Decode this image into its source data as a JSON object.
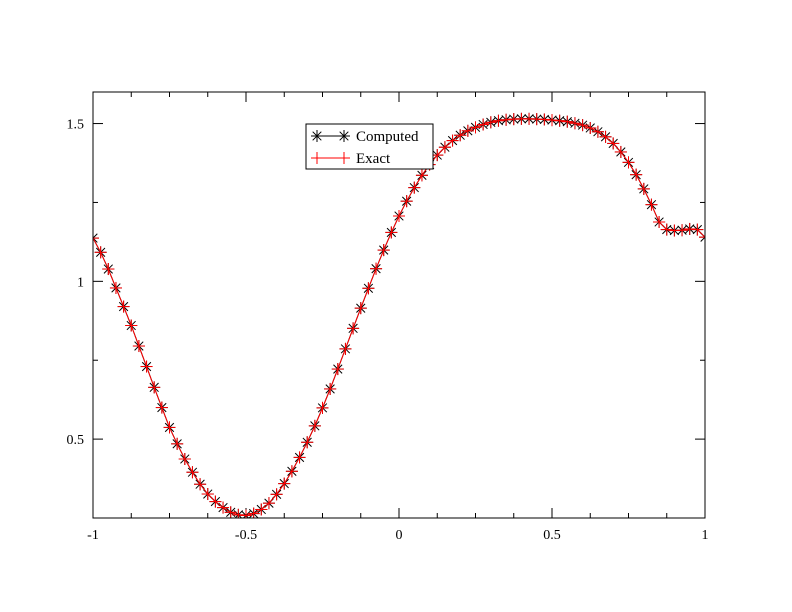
{
  "chart_data": {
    "type": "line",
    "title": "",
    "xlabel": "",
    "ylabel": "",
    "xlim": [
      -1,
      1
    ],
    "ylim": [
      0.25,
      1.6
    ],
    "xticks": [
      -1,
      -0.5,
      0,
      0.5,
      1
    ],
    "xtick_labels": [
      "-1",
      "-0.5",
      "0",
      "0.5",
      "1"
    ],
    "yticks": [
      0.5,
      1,
      1.5
    ],
    "ytick_labels": [
      "0.5",
      "1",
      "1.5"
    ],
    "grid": false,
    "legend_position": "top-center",
    "x": [
      -1.0,
      -0.975,
      -0.95,
      -0.925,
      -0.9,
      -0.875,
      -0.85,
      -0.825,
      -0.8,
      -0.775,
      -0.75,
      -0.725,
      -0.7,
      -0.675,
      -0.65,
      -0.625,
      -0.6,
      -0.575,
      -0.55,
      -0.525,
      -0.5,
      -0.475,
      -0.45,
      -0.425,
      -0.4,
      -0.375,
      -0.35,
      -0.325,
      -0.3,
      -0.275,
      -0.25,
      -0.225,
      -0.2,
      -0.175,
      -0.15,
      -0.125,
      -0.1,
      -0.075,
      -0.05,
      -0.025,
      0.0,
      0.025,
      0.05,
      0.075,
      0.1,
      0.125,
      0.15,
      0.175,
      0.2,
      0.225,
      0.25,
      0.275,
      0.3,
      0.325,
      0.35,
      0.375,
      0.4,
      0.425,
      0.45,
      0.475,
      0.5,
      0.525,
      0.55,
      0.575,
      0.6,
      0.625,
      0.65,
      0.675,
      0.7,
      0.725,
      0.75,
      0.775,
      0.8,
      0.825,
      0.85,
      0.875,
      0.9,
      0.925,
      0.95,
      0.975,
      1.0
    ],
    "series": [
      {
        "name": "Computed",
        "color": "#000000",
        "marker": "asterisk",
        "values": [
          1.137,
          1.092,
          1.039,
          0.979,
          0.92,
          0.86,
          0.795,
          0.73,
          0.664,
          0.6,
          0.537,
          0.485,
          0.437,
          0.395,
          0.357,
          0.326,
          0.302,
          0.283,
          0.268,
          0.26,
          0.258,
          0.264,
          0.277,
          0.297,
          0.325,
          0.359,
          0.398,
          0.442,
          0.49,
          0.542,
          0.599,
          0.659,
          0.722,
          0.786,
          0.851,
          0.915,
          0.978,
          1.04,
          1.099,
          1.155,
          1.207,
          1.254,
          1.297,
          1.336,
          1.37,
          1.4,
          1.425,
          1.446,
          1.463,
          1.477,
          1.488,
          1.497,
          1.504,
          1.509,
          1.512,
          1.514,
          1.515,
          1.515,
          1.514,
          1.513,
          1.511,
          1.509,
          1.506,
          1.501,
          1.495,
          1.486,
          1.474,
          1.458,
          1.437,
          1.41,
          1.377,
          1.338,
          1.293,
          1.243,
          1.188,
          1.164,
          1.161,
          1.162,
          1.166,
          1.164,
          1.14
        ]
      },
      {
        "name": "Exact",
        "color": "#ff0000",
        "marker": "plus",
        "values": [
          1.137,
          1.092,
          1.039,
          0.979,
          0.92,
          0.86,
          0.795,
          0.73,
          0.664,
          0.6,
          0.537,
          0.485,
          0.437,
          0.395,
          0.357,
          0.326,
          0.302,
          0.283,
          0.268,
          0.26,
          0.258,
          0.264,
          0.277,
          0.297,
          0.325,
          0.359,
          0.398,
          0.442,
          0.49,
          0.542,
          0.599,
          0.659,
          0.722,
          0.786,
          0.851,
          0.915,
          0.978,
          1.04,
          1.099,
          1.155,
          1.207,
          1.254,
          1.297,
          1.336,
          1.37,
          1.4,
          1.425,
          1.446,
          1.463,
          1.477,
          1.488,
          1.497,
          1.504,
          1.509,
          1.512,
          1.514,
          1.515,
          1.515,
          1.514,
          1.513,
          1.511,
          1.509,
          1.506,
          1.501,
          1.495,
          1.486,
          1.474,
          1.458,
          1.437,
          1.41,
          1.377,
          1.338,
          1.293,
          1.243,
          1.188,
          1.164,
          1.161,
          1.162,
          1.166,
          1.164,
          1.14
        ]
      }
    ]
  }
}
